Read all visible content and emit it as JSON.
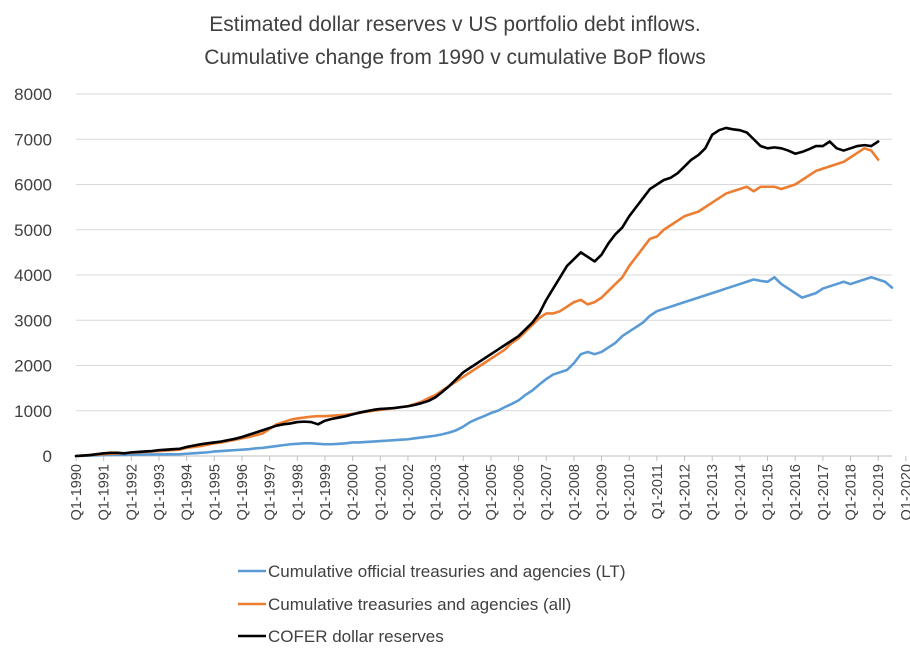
{
  "chart_data": {
    "type": "line",
    "title_lines": [
      "Estimated dollar reserves v US portfolio debt inflows.",
      "Cumulative change from 1990 v cumulative BoP flows"
    ],
    "xlabel": "",
    "ylabel": "",
    "ylim": [
      0,
      8000
    ],
    "yticks": [
      0,
      1000,
      2000,
      3000,
      4000,
      5000,
      6000,
      7000,
      8000
    ],
    "x_tick_labels": [
      "Q1-1990",
      "Q1-1991",
      "Q1-1992",
      "Q1-1993",
      "Q1-1994",
      "Q1-1995",
      "Q1-1996",
      "Q1-1997",
      "Q1-1998",
      "Q1-1999",
      "Q1-2000",
      "Q1-2001",
      "Q1-2002",
      "Q1-2003",
      "Q1-2004",
      "Q1-2005",
      "Q1-2006",
      "Q1-2007",
      "Q1-2008",
      "Q1-2009",
      "Q1-2010",
      "Q1-2011",
      "Q1-2012",
      "Q1-2013",
      "Q1-2014",
      "Q1-2015",
      "Q1-2016",
      "Q1-2017",
      "Q1-2018",
      "Q1-2019",
      "Q1-2020"
    ],
    "grid": "horizontal",
    "legend_position": "bottom",
    "series": [
      {
        "name": "Cumulative official treasuries and agencies (LT)",
        "color": "#5b9bd5",
        "values": [
          0,
          5,
          10,
          15,
          20,
          22,
          25,
          27,
          30,
          32,
          33,
          35,
          35,
          37,
          38,
          40,
          50,
          60,
          70,
          80,
          100,
          110,
          120,
          130,
          140,
          150,
          170,
          180,
          200,
          220,
          240,
          260,
          270,
          280,
          280,
          270,
          260,
          260,
          270,
          280,
          300,
          300,
          310,
          320,
          330,
          340,
          350,
          360,
          370,
          390,
          410,
          430,
          450,
          480,
          520,
          570,
          650,
          750,
          820,
          880,
          950,
          1000,
          1080,
          1150,
          1230,
          1350,
          1450,
          1580,
          1700,
          1800,
          1850,
          1900,
          2050,
          2250,
          2300,
          2250,
          2300,
          2400,
          2500,
          2650,
          2750,
          2850,
          2950,
          3100,
          3200,
          3250,
          3300,
          3350,
          3400,
          3450,
          3500,
          3550,
          3600,
          3650,
          3700,
          3750,
          3800,
          3850,
          3900,
          3870,
          3850,
          3950,
          3800,
          3700,
          3600,
          3500,
          3550,
          3600,
          3700,
          3750,
          3800,
          3850,
          3800,
          3850,
          3900,
          3950,
          3900,
          3850,
          3720
        ]
      },
      {
        "name": "Cumulative treasuries and agencies (all)",
        "color": "#ed7d31",
        "values": [
          0,
          10,
          20,
          30,
          40,
          50,
          55,
          60,
          70,
          80,
          90,
          100,
          110,
          120,
          130,
          140,
          180,
          200,
          220,
          250,
          280,
          300,
          330,
          360,
          390,
          420,
          460,
          500,
          600,
          700,
          750,
          800,
          830,
          850,
          870,
          880,
          880,
          890,
          900,
          910,
          930,
          950,
          980,
          1000,
          1020,
          1040,
          1060,
          1080,
          1100,
          1150,
          1200,
          1280,
          1350,
          1450,
          1550,
          1650,
          1750,
          1850,
          1950,
          2050,
          2150,
          2250,
          2350,
          2500,
          2600,
          2750,
          2900,
          3050,
          3150,
          3150,
          3200,
          3300,
          3400,
          3450,
          3350,
          3400,
          3500,
          3650,
          3800,
          3950,
          4200,
          4400,
          4600,
          4800,
          4850,
          5000,
          5100,
          5200,
          5300,
          5350,
          5400,
          5500,
          5600,
          5700,
          5800,
          5850,
          5900,
          5950,
          5850,
          5950,
          5950,
          5950,
          5900,
          5950,
          6000,
          6100,
          6200,
          6300,
          6350,
          6400,
          6450,
          6500,
          6600,
          6700,
          6800,
          6750,
          6550
        ]
      },
      {
        "name": "COFER dollar reserves",
        "color": "#000000",
        "values": [
          0,
          10,
          20,
          40,
          60,
          70,
          70,
          60,
          80,
          90,
          100,
          110,
          130,
          140,
          150,
          160,
          200,
          230,
          260,
          280,
          300,
          320,
          350,
          380,
          420,
          470,
          520,
          570,
          620,
          670,
          700,
          720,
          750,
          760,
          750,
          700,
          780,
          820,
          850,
          880,
          920,
          960,
          990,
          1020,
          1040,
          1050,
          1060,
          1080,
          1100,
          1130,
          1170,
          1220,
          1300,
          1420,
          1550,
          1700,
          1850,
          1950,
          2050,
          2150,
          2250,
          2350,
          2450,
          2550,
          2650,
          2800,
          2950,
          3150,
          3450,
          3700,
          3950,
          4200,
          4350,
          4500,
          4400,
          4300,
          4450,
          4700,
          4900,
          5050,
          5300,
          5500,
          5700,
          5900,
          6000,
          6100,
          6150,
          6250,
          6400,
          6550,
          6650,
          6800,
          7100,
          7200,
          7250,
          7220,
          7200,
          7150,
          7000,
          6850,
          6800,
          6820,
          6800,
          6750,
          6680,
          6720,
          6780,
          6850,
          6850,
          6950,
          6800,
          6750,
          6800,
          6850,
          6870,
          6850,
          6950
        ]
      }
    ]
  }
}
